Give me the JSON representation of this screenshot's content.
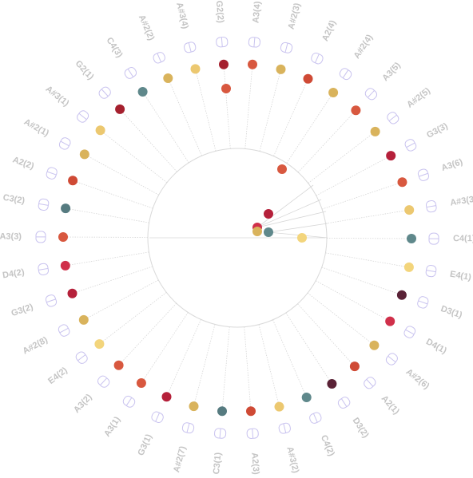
{
  "diagram": {
    "labels": [
      "A3(4)",
      "A#2(3)",
      "A2(4)",
      "A#2(4)",
      "A3(5)",
      "A#2(5)",
      "G3(3)",
      "A3(6)",
      "A#3(3)",
      "C4(1)",
      "E4(1)",
      "D3(1)",
      "D4(1)",
      "A#2(6)",
      "A2(1)",
      "D3(2)",
      "C4(2)",
      "A#3(2)",
      "A2(3)",
      "C3(1)",
      "A#2(7)",
      "G3(1)",
      "A3(1)",
      "A3(2)",
      "E4(2)",
      "A#2(8)",
      "G3(2)",
      "D4(2)",
      "A3(3)",
      "C3(2)",
      "A2(2)",
      "A#2(1)",
      "A#3(1)",
      "G2(1)",
      "C4(3)",
      "A#2(2)",
      "A#3(4)",
      "G2(2)"
    ],
    "colors": {
      "A2": "#cf4a35",
      "A#2": "#d9b35c",
      "A3": "#d8583f",
      "A#3": "#ecc870",
      "C3": "#567b80",
      "C4": "#5f888b",
      "D3": "#5a2236",
      "D4": "#d0304a",
      "E4": "#f3d57c",
      "G2": "#a5202e",
      "G3": "#b5203a"
    },
    "icon": "note-bar-icon"
  }
}
